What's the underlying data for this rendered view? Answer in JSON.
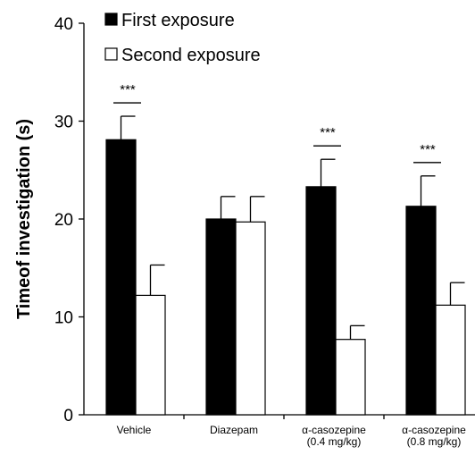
{
  "chart_data": {
    "type": "bar",
    "title": "",
    "xlabel": "",
    "ylabel": "Timeof investigation (s)",
    "ylim": [
      0,
      40
    ],
    "yticks": [
      0,
      10,
      20,
      30,
      40
    ],
    "categories": [
      [
        "Vehicle"
      ],
      [
        "Diazepam"
      ],
      [
        "α-casozepine",
        "(0.4 mg/kg)"
      ],
      [
        "α-casozepine",
        "(0.8 mg/kg)"
      ]
    ],
    "series": [
      {
        "name": "First exposure",
        "values": [
          28.1,
          20.0,
          23.3,
          21.3
        ],
        "errors": [
          2.4,
          2.3,
          2.8,
          3.1
        ],
        "fill": "#000000"
      },
      {
        "name": "Second exposure",
        "values": [
          12.2,
          19.7,
          7.7,
          11.2
        ],
        "errors": [
          3.1,
          2.6,
          1.4,
          2.3
        ],
        "fill": "#ffffff"
      }
    ],
    "significance": [
      "***",
      "",
      "***",
      "***"
    ],
    "legend_position": "top-left",
    "grid": false
  }
}
